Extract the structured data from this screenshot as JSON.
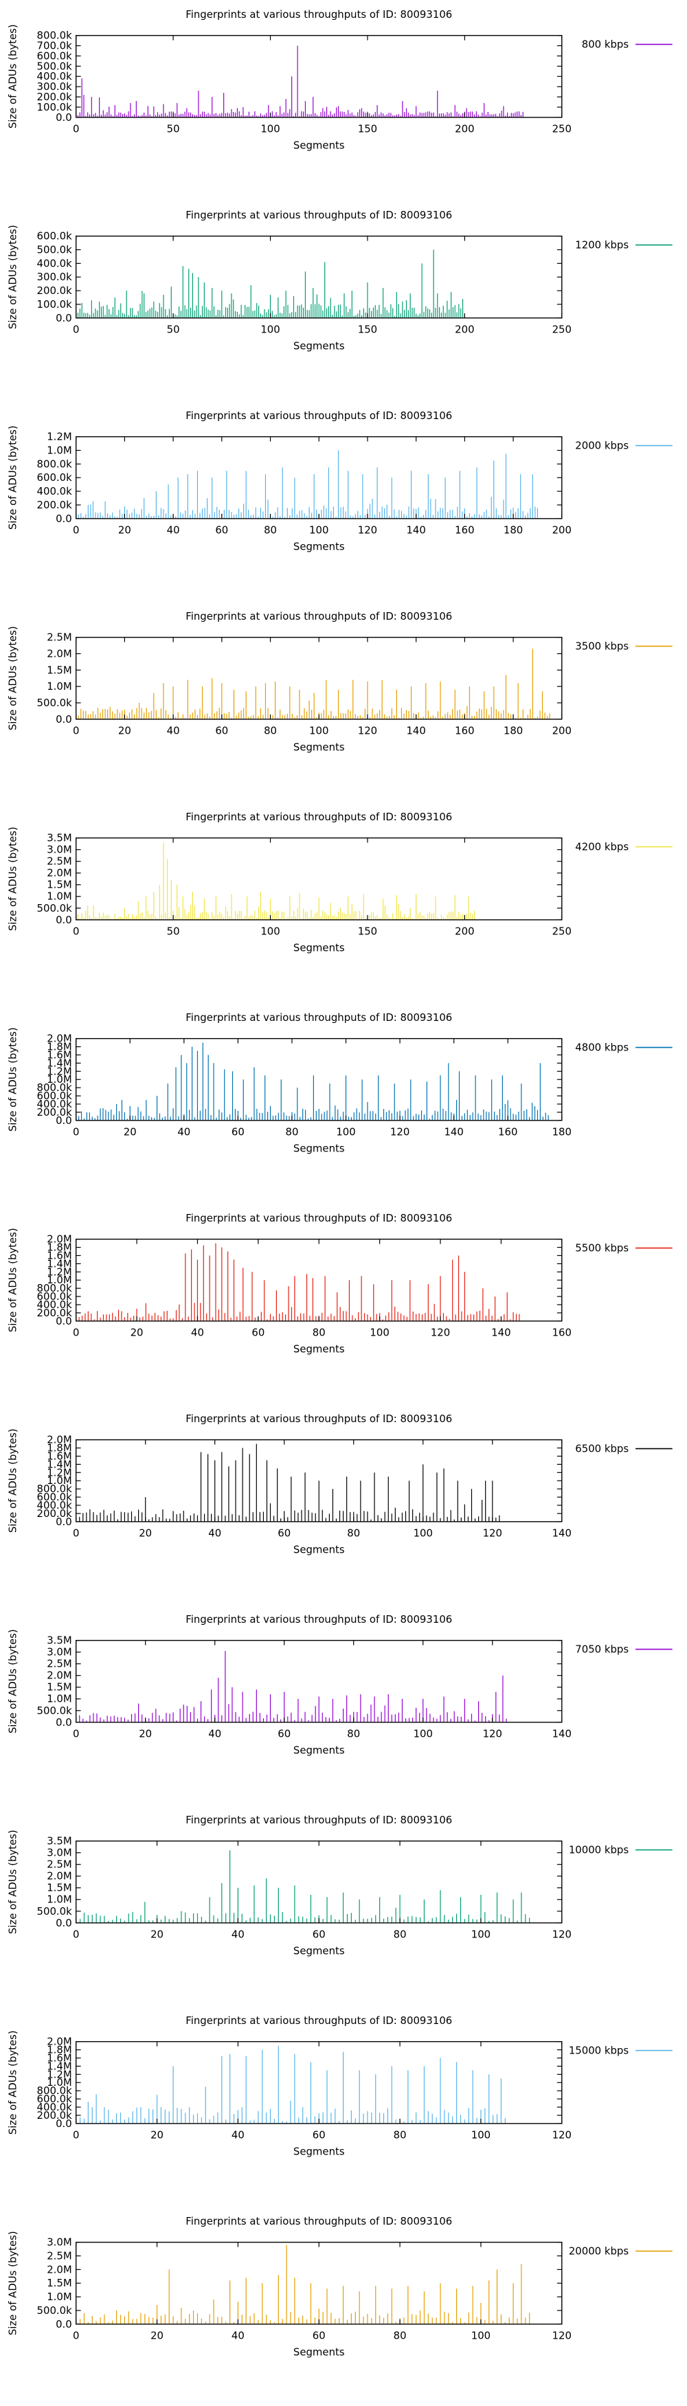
{
  "chart_data": [
    {
      "type": "bar",
      "title": "Fingerprints at various throughputs of ID: 80093106",
      "xlabel": "Segments",
      "ylabel": "Size of ADUs (bytes)",
      "legend": "800 kbps",
      "color": "#9400d3",
      "xlim": [
        0,
        250
      ],
      "xticks": [
        0,
        50,
        100,
        150,
        200,
        250
      ],
      "ylim": [
        0,
        800000
      ],
      "yticks": [
        0,
        100000,
        200000,
        300000,
        400000,
        500000,
        600000,
        700000,
        800000
      ],
      "ytick_labels": [
        "0.0",
        "100.0k",
        "200.0k",
        "300.0k",
        "400.0k",
        "500.0k",
        "600.0k",
        "700.0k",
        "800.0k"
      ],
      "n": 230,
      "seed": 11,
      "base": [
        10000,
        60000
      ],
      "peaks": {
        "3": 380000,
        "4": 220000,
        "8": 200000,
        "12": 195000,
        "20": 120000,
        "28": 140000,
        "31": 160000,
        "37": 110000,
        "45": 130000,
        "52": 140000,
        "57": 90000,
        "63": 260000,
        "70": 200000,
        "76": 240000,
        "86": 100000,
        "99": 120000,
        "105": 110000,
        "108": 180000,
        "111": 400000,
        "114": 700000,
        "118": 160000,
        "122": 200000,
        "135": 110000,
        "147": 90000,
        "155": 120000,
        "168": 160000,
        "175": 110000,
        "186": 260000,
        "195": 120000,
        "201": 90000,
        "210": 140000,
        "220": 110000
      }
    },
    {
      "type": "bar",
      "title": "Fingerprints at various throughputs of ID: 80093106",
      "xlabel": "Segments",
      "ylabel": "Size of ADUs (bytes)",
      "legend": "1200 kbps",
      "color": "#009e73",
      "xlim": [
        0,
        250
      ],
      "xticks": [
        0,
        50,
        100,
        150,
        200,
        250
      ],
      "ylim": [
        0,
        600000
      ],
      "yticks": [
        0,
        100000,
        200000,
        300000,
        400000,
        500000,
        600000
      ],
      "ytick_labels": [
        "0.0",
        "100.0k",
        "200.0k",
        "300.0k",
        "400.0k",
        "500.0k",
        "600.0k"
      ],
      "n": 200,
      "seed": 23,
      "base": [
        15000,
        110000
      ],
      "peaks": {
        "3": 110000,
        "8": 130000,
        "12": 120000,
        "20": 150000,
        "26": 200000,
        "35": 180000,
        "40": 120000,
        "45": 170000,
        "49": 230000,
        "55": 380000,
        "58": 360000,
        "60": 330000,
        "63": 300000,
        "66": 260000,
        "70": 220000,
        "75": 200000,
        "80": 180000,
        "90": 240000,
        "100": 170000,
        "108": 200000,
        "112": 160000,
        "118": 340000,
        "122": 220000,
        "128": 410000,
        "138": 180000,
        "142": 200000,
        "150": 260000,
        "158": 220000,
        "165": 190000,
        "172": 180000,
        "178": 400000,
        "184": 500000,
        "186": 180000,
        "193": 190000
      }
    },
    {
      "type": "bar",
      "title": "Fingerprints at various throughputs of ID: 80093106",
      "xlabel": "Segments",
      "ylabel": "Size of ADUs (bytes)",
      "legend": "2000 kbps",
      "color": "#56b4e9",
      "xlim": [
        0,
        200
      ],
      "xticks": [
        0,
        20,
        40,
        60,
        80,
        100,
        120,
        140,
        160,
        180,
        200
      ],
      "ylim": [
        0,
        1200000
      ],
      "yticks": [
        0,
        200000,
        400000,
        600000,
        800000,
        1000000,
        1200000
      ],
      "ytick_labels": [
        "0.0",
        "200.0k",
        "400.0k",
        "600.0k",
        "800.0k",
        "1.0M",
        "1.2M"
      ],
      "n": 190,
      "seed": 37,
      "base": [
        20000,
        180000
      ],
      "peaks": {
        "5": 200000,
        "12": 250000,
        "20": 180000,
        "28": 300000,
        "33": 400000,
        "38": 500000,
        "42": 600000,
        "46": 650000,
        "50": 700000,
        "56": 600000,
        "62": 700000,
        "70": 700000,
        "78": 650000,
        "85": 750000,
        "90": 600000,
        "98": 650000,
        "104": 750000,
        "108": 1000000,
        "112": 700000,
        "118": 650000,
        "124": 750000,
        "130": 600000,
        "138": 700000,
        "145": 650000,
        "152": 600000,
        "158": 700000,
        "165": 750000,
        "172": 850000,
        "177": 950000,
        "183": 650000,
        "188": 650000
      }
    },
    {
      "type": "bar",
      "title": "Fingerprints at various throughputs of ID: 80093106",
      "xlabel": "Segments",
      "ylabel": "Size of ADUs (bytes)",
      "legend": "3500 kbps",
      "color": "#e69f00",
      "xlim": [
        0,
        200
      ],
      "xticks": [
        0,
        20,
        40,
        60,
        80,
        100,
        120,
        140,
        160,
        180,
        200
      ],
      "ylim": [
        0,
        2500000
      ],
      "yticks": [
        0,
        500000,
        1000000,
        1500000,
        2000000,
        2500000
      ],
      "ytick_labels": [
        "0.0",
        "500.0k",
        "1.0M",
        "1.5M",
        "2.0M",
        "2.5M"
      ],
      "n": 195,
      "seed": 41,
      "base": [
        30000,
        350000
      ],
      "peaks": {
        "4": 250000,
        "10": 200000,
        "18": 200000,
        "26": 500000,
        "32": 800000,
        "36": 1100000,
        "40": 1000000,
        "46": 1200000,
        "52": 1000000,
        "56": 1250000,
        "60": 1100000,
        "65": 900000,
        "70": 850000,
        "74": 1000000,
        "78": 1100000,
        "82": 1150000,
        "88": 1000000,
        "92": 900000,
        "98": 800000,
        "103": 1200000,
        "108": 900000,
        "114": 1200000,
        "120": 1150000,
        "126": 1200000,
        "132": 900000,
        "138": 1000000,
        "144": 1100000,
        "150": 1150000,
        "156": 900000,
        "162": 1000000,
        "168": 850000,
        "172": 1000000,
        "177": 1350000,
        "182": 1100000,
        "188": 2150000,
        "192": 850000
      }
    },
    {
      "type": "bar",
      "title": "Fingerprints at various throughputs of ID: 80093106",
      "xlabel": "Segments",
      "ylabel": "Size of ADUs (bytes)",
      "legend": "4200 kbps",
      "color": "#f0e442",
      "xlim": [
        0,
        250
      ],
      "xticks": [
        0,
        50,
        100,
        150,
        200,
        250
      ],
      "ylim": [
        0,
        3500000
      ],
      "yticks": [
        0,
        500000,
        1000000,
        1500000,
        2000000,
        2500000,
        3000000,
        3500000
      ],
      "ytick_labels": [
        "0.0",
        "500.0k",
        "1.0M",
        "1.5M",
        "2.0M",
        "2.5M",
        "3.0M",
        "3.5M"
      ],
      "n": 205,
      "seed": 53,
      "base": [
        40000,
        400000
      ],
      "peaks": {
        "5": 400000,
        "12": 300000,
        "25": 500000,
        "32": 800000,
        "36": 1000000,
        "40": 1200000,
        "43": 1500000,
        "45": 3300000,
        "47": 2600000,
        "49": 1700000,
        "52": 1500000,
        "55": 1000000,
        "60": 1200000,
        "66": 900000,
        "72": 1000000,
        "80": 1100000,
        "88": 1000000,
        "95": 1200000,
        "100": 900000,
        "110": 1000000,
        "115": 1150000,
        "125": 950000,
        "140": 1000000,
        "148": 1100000,
        "158": 900000,
        "165": 1050000,
        "175": 1100000,
        "185": 1000000,
        "195": 1050000,
        "202": 1000000
      }
    },
    {
      "type": "bar",
      "title": "Fingerprints at various throughputs of ID: 80093106",
      "xlabel": "Segments",
      "ylabel": "Size of ADUs (bytes)",
      "legend": "4800 kbps",
      "color": "#0072b2",
      "xlim": [
        0,
        180
      ],
      "xticks": [
        0,
        20,
        40,
        60,
        80,
        100,
        120,
        140,
        160,
        180
      ],
      "ylim": [
        0,
        2000000
      ],
      "yticks": [
        0,
        200000,
        400000,
        600000,
        800000,
        1000000,
        1200000,
        1400000,
        1600000,
        1800000,
        2000000
      ],
      "ytick_labels": [
        "0.0",
        "200.0k",
        "400.0k",
        "600.0k",
        "800.0k",
        "1.0M",
        "1.2M",
        "1.4M",
        "1.6M",
        "1.8M",
        "2.0M"
      ],
      "n": 175,
      "seed": 67,
      "base": [
        40000,
        300000
      ],
      "peaks": {
        "4": 200000,
        "10": 300000,
        "15": 400000,
        "20": 350000,
        "26": 500000,
        "30": 600000,
        "34": 900000,
        "37": 1300000,
        "39": 1600000,
        "41": 1400000,
        "43": 1800000,
        "45": 1700000,
        "47": 1900000,
        "49": 1600000,
        "51": 1400000,
        "55": 1250000,
        "58": 1200000,
        "62": 1000000,
        "66": 1300000,
        "70": 1100000,
        "76": 1000000,
        "82": 800000,
        "88": 1100000,
        "94": 900000,
        "100": 1100000,
        "106": 1000000,
        "112": 1100000,
        "118": 900000,
        "124": 1000000,
        "130": 950000,
        "135": 1100000,
        "138": 1400000,
        "142": 1200000,
        "148": 1100000,
        "154": 1000000,
        "158": 1100000,
        "165": 900000,
        "172": 1400000
      }
    },
    {
      "type": "bar",
      "title": "Fingerprints at various throughputs of ID: 80093106",
      "xlabel": "Segments",
      "ylabel": "Size of ADUs (bytes)",
      "legend": "5500 kbps",
      "color": "#e51e10",
      "xlim": [
        0,
        160
      ],
      "xticks": [
        0,
        20,
        40,
        60,
        80,
        100,
        120,
        140,
        160
      ],
      "ylim": [
        0,
        2000000
      ],
      "yticks": [
        0,
        200000,
        400000,
        600000,
        800000,
        1000000,
        1200000,
        1400000,
        1600000,
        1800000,
        2000000
      ],
      "ytick_labels": [
        "0.0",
        "200.0k",
        "400.0k",
        "600.0k",
        "800.0k",
        "1.0M",
        "1.2M",
        "1.4M",
        "1.6M",
        "1.8M",
        "2.0M"
      ],
      "n": 146,
      "seed": 71,
      "base": [
        40000,
        250000
      ],
      "peaks": {
        "5": 180000,
        "12": 200000,
        "20": 300000,
        "26": 200000,
        "30": 250000,
        "36": 1650000,
        "38": 1750000,
        "40": 1500000,
        "42": 1850000,
        "44": 1600000,
        "46": 1900000,
        "48": 1800000,
        "50": 1700000,
        "52": 1500000,
        "55": 1300000,
        "58": 1200000,
        "62": 1000000,
        "66": 750000,
        "70": 850000,
        "72": 1100000,
        "76": 1150000,
        "78": 1050000,
        "82": 1100000,
        "86": 700000,
        "90": 1000000,
        "94": 1100000,
        "98": 900000,
        "104": 1000000,
        "110": 1000000,
        "116": 900000,
        "120": 1100000,
        "124": 1500000,
        "126": 1600000,
        "128": 1200000,
        "134": 800000,
        "138": 600000,
        "142": 700000
      }
    },
    {
      "type": "bar",
      "title": "Fingerprints at various throughputs of ID: 80093106",
      "xlabel": "Segments",
      "ylabel": "Size of ADUs (bytes)",
      "legend": "6500 kbps",
      "color": "#000000",
      "xlim": [
        0,
        140
      ],
      "xticks": [
        0,
        20,
        40,
        60,
        80,
        100,
        120,
        140
      ],
      "ylim": [
        0,
        2000000
      ],
      "yticks": [
        0,
        200000,
        400000,
        600000,
        800000,
        1000000,
        1200000,
        1400000,
        1600000,
        1800000,
        2000000
      ],
      "ytick_labels": [
        "0.0",
        "200.0k",
        "400.0k",
        "600.0k",
        "800.0k",
        "1.0M",
        "1.2M",
        "1.4M",
        "1.6M",
        "1.8M",
        "2.0M"
      ],
      "n": 122,
      "seed": 83,
      "base": [
        50000,
        300000
      ],
      "peaks": {
        "4": 300000,
        "10": 200000,
        "16": 250000,
        "20": 600000,
        "25": 300000,
        "30": 200000,
        "36": 1700000,
        "38": 1650000,
        "40": 1500000,
        "42": 1700000,
        "44": 1350000,
        "46": 1500000,
        "48": 1800000,
        "50": 1650000,
        "52": 1900000,
        "55": 1500000,
        "58": 1300000,
        "62": 1100000,
        "66": 1200000,
        "70": 1000000,
        "74": 800000,
        "78": 1100000,
        "82": 1000000,
        "86": 1200000,
        "90": 1100000,
        "96": 1000000,
        "100": 1400000,
        "104": 1200000,
        "106": 1300000,
        "110": 1000000,
        "114": 800000,
        "118": 1000000,
        "120": 1000000
      }
    },
    {
      "type": "bar",
      "title": "Fingerprints at various throughputs of ID: 80093106",
      "xlabel": "Segments",
      "ylabel": "Size of ADUs (bytes)",
      "legend": "7050 kbps",
      "color": "#9400d3",
      "xlim": [
        0,
        140
      ],
      "xticks": [
        0,
        20,
        40,
        60,
        80,
        100,
        120,
        140
      ],
      "ylim": [
        0,
        3500000
      ],
      "yticks": [
        0,
        500000,
        1000000,
        1500000,
        2000000,
        2500000,
        3000000,
        3500000
      ],
      "ytick_labels": [
        "0.0",
        "500.0k",
        "1.0M",
        "1.5M",
        "2.0M",
        "2.5M",
        "3.0M",
        "3.5M"
      ],
      "n": 124,
      "seed": 97,
      "base": [
        60000,
        450000
      ],
      "peaks": {
        "4": 300000,
        "10": 250000,
        "18": 800000,
        "26": 400000,
        "32": 700000,
        "36": 900000,
        "39": 1400000,
        "41": 1900000,
        "43": 3050000,
        "45": 1500000,
        "48": 1300000,
        "52": 1400000,
        "56": 1200000,
        "60": 1300000,
        "64": 1000000,
        "70": 1100000,
        "74": 1000000,
        "78": 1150000,
        "82": 1200000,
        "86": 1100000,
        "90": 1200000,
        "94": 1000000,
        "100": 1000000,
        "106": 1100000,
        "112": 1000000,
        "116": 900000,
        "121": 1300000,
        "123": 2000000
      }
    },
    {
      "type": "bar",
      "title": "Fingerprints at various throughputs of ID: 80093106",
      "xlabel": "Segments",
      "ylabel": "Size of ADUs (bytes)",
      "legend": "10000 kbps",
      "color": "#009e73",
      "xlim": [
        0,
        120
      ],
      "xticks": [
        0,
        20,
        40,
        60,
        80,
        100,
        120
      ],
      "ylim": [
        0,
        3500000
      ],
      "yticks": [
        0,
        500000,
        1000000,
        1500000,
        2000000,
        2500000,
        3000000,
        3500000
      ],
      "ytick_labels": [
        "0.0",
        "500.0k",
        "1.0M",
        "1.5M",
        "2.0M",
        "2.5M",
        "3.0M",
        "3.5M"
      ],
      "n": 112,
      "seed": 101,
      "base": [
        60000,
        450000
      ],
      "peaks": {
        "4": 350000,
        "10": 300000,
        "17": 900000,
        "22": 300000,
        "28": 200000,
        "33": 1100000,
        "36": 1700000,
        "38": 3100000,
        "40": 1500000,
        "44": 1600000,
        "47": 1900000,
        "50": 1500000,
        "54": 1600000,
        "58": 1200000,
        "62": 1100000,
        "66": 1300000,
        "70": 1000000,
        "75": 1100000,
        "80": 1200000,
        "86": 1000000,
        "90": 1400000,
        "95": 1100000,
        "100": 1200000,
        "104": 1300000,
        "108": 1000000,
        "110": 1300000
      }
    },
    {
      "type": "bar",
      "title": "Fingerprints at various throughputs of ID: 80093106",
      "xlabel": "Segments",
      "ylabel": "Size of ADUs (bytes)",
      "legend": "15000 kbps",
      "color": "#56b4e9",
      "xlim": [
        0,
        120
      ],
      "xticks": [
        0,
        20,
        40,
        60,
        80,
        100,
        120
      ],
      "ylim": [
        0,
        2000000
      ],
      "yticks": [
        0,
        200000,
        400000,
        600000,
        800000,
        1000000,
        1200000,
        1400000,
        1600000,
        1800000,
        2000000
      ],
      "ytick_labels": [
        "0.0",
        "200.0k",
        "400.0k",
        "600.0k",
        "800.0k",
        "1.0M",
        "1.2M",
        "1.4M",
        "1.6M",
        "1.8M",
        "2.0M"
      ],
      "n": 106,
      "seed": 113,
      "base": [
        50000,
        400000
      ],
      "peaks": {
        "4": 400000,
        "10": 250000,
        "16": 400000,
        "20": 700000,
        "24": 1400000,
        "28": 400000,
        "32": 900000,
        "36": 1650000,
        "38": 1700000,
        "42": 1650000,
        "46": 1800000,
        "50": 1900000,
        "54": 1700000,
        "58": 1500000,
        "62": 1300000,
        "66": 1750000,
        "70": 1300000,
        "74": 1200000,
        "78": 1400000,
        "82": 1300000,
        "86": 1400000,
        "90": 1600000,
        "94": 1500000,
        "98": 1300000,
        "102": 1200000,
        "105": 1100000
      }
    },
    {
      "type": "bar",
      "title": "Fingerprints at various throughputs of ID: 80093106",
      "xlabel": "Segments",
      "ylabel": "Size of ADUs (bytes)",
      "legend": "20000 kbps",
      "color": "#e69f00",
      "xlim": [
        0,
        120
      ],
      "xticks": [
        0,
        20,
        40,
        60,
        80,
        100,
        120
      ],
      "ylim": [
        0,
        3000000
      ],
      "yticks": [
        0,
        500000,
        1000000,
        1500000,
        2000000,
        2500000,
        3000000
      ],
      "ytick_labels": [
        "0.0",
        "500.0k",
        "1.0M",
        "1.5M",
        "2.0M",
        "2.5M",
        "3.0M"
      ],
      "n": 112,
      "seed": 127,
      "base": [
        60000,
        500000
      ],
      "peaks": {
        "4": 300000,
        "10": 500000,
        "16": 400000,
        "20": 700000,
        "23": 2000000,
        "26": 600000,
        "30": 400000,
        "34": 900000,
        "38": 1600000,
        "42": 1700000,
        "46": 1500000,
        "50": 1800000,
        "52": 2900000,
        "54": 1700000,
        "58": 1500000,
        "62": 1300000,
        "66": 1400000,
        "70": 1200000,
        "74": 1400000,
        "78": 1300000,
        "82": 1400000,
        "86": 1200000,
        "90": 1500000,
        "94": 1300000,
        "98": 1400000,
        "102": 1600000,
        "104": 2000000,
        "108": 1500000,
        "110": 2200000
      }
    }
  ]
}
